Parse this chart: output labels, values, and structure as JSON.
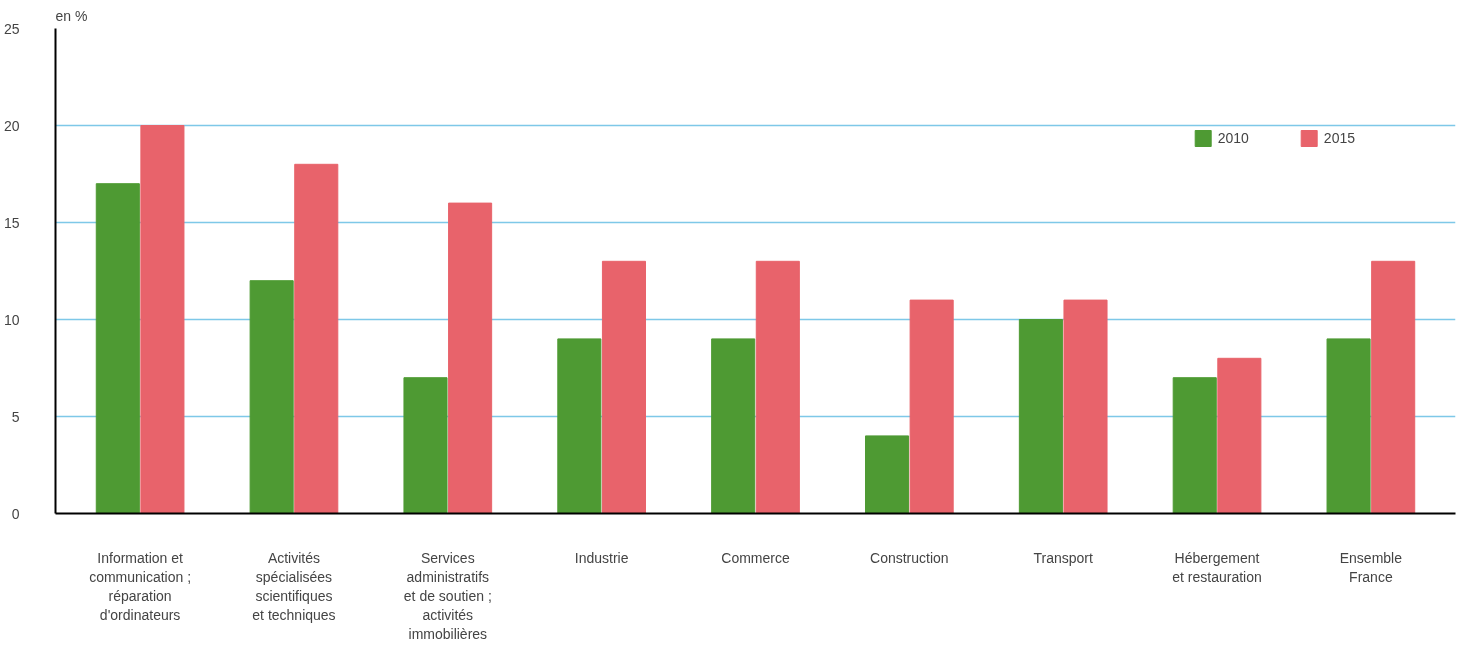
{
  "chart_data": {
    "type": "bar",
    "ylabel": "en %",
    "categories": [
      "Information et\ncommunication ;\nréparation\nd'ordinateurs",
      "Activités\nspécialisées\nscientifiques\net techniques",
      "Services\nadministratifs\net de soutien ;\nactivités\nimmobilières",
      "Industrie",
      "Commerce",
      "Construction",
      "Transport",
      "Hébergement\net restauration",
      "Ensemble\nFrance"
    ],
    "series": [
      {
        "name": "2010",
        "color": "#4e9a33",
        "values": [
          17,
          12,
          7,
          9,
          9,
          4,
          10,
          7,
          9
        ]
      },
      {
        "name": "2015",
        "color": "#e8636b",
        "values": [
          20,
          18,
          16,
          13,
          13,
          11,
          11,
          8,
          13
        ]
      }
    ],
    "ylim": [
      0,
      25
    ],
    "yticks": [
      0,
      5,
      10,
      15,
      20,
      25
    ],
    "grid": "y",
    "legend": "top right"
  }
}
